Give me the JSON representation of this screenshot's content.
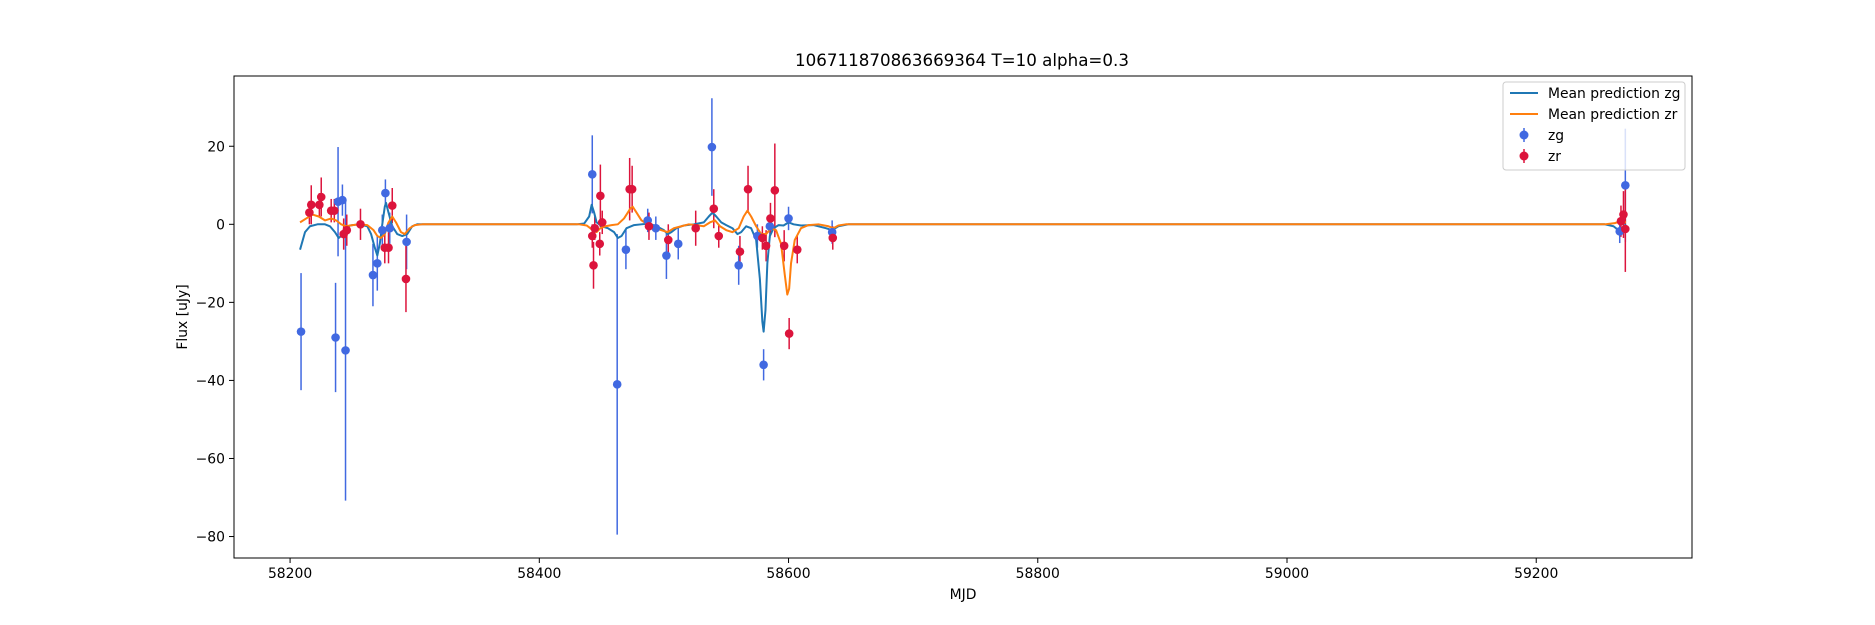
{
  "chart_data": {
    "type": "scatter",
    "title": "106711870863669364 T=10 alpha=0.3",
    "xlabel": "MJD",
    "ylabel": "Flux [uJy]",
    "xlim": [
      58155,
      59325
    ],
    "ylim": [
      -85.5,
      38
    ],
    "xticks": [
      58200,
      58400,
      58600,
      58800,
      59000,
      59200
    ],
    "yticks": [
      -80,
      -60,
      -40,
      -20,
      0,
      20
    ],
    "grid": false,
    "legend_position": "top-right",
    "legend": [
      {
        "label": "Mean prediction zg",
        "kind": "line",
        "color": "#1f77b4"
      },
      {
        "label": "Mean prediction zr",
        "kind": "line",
        "color": "#ff7f0e"
      },
      {
        "label": "zg",
        "kind": "errorbar",
        "color": "#4169e1"
      },
      {
        "label": "zr",
        "kind": "errorbar",
        "color": "#dc143c"
      }
    ],
    "series": [
      {
        "name": "zg",
        "kind": "errorbar",
        "color": "#4169e1",
        "points": [
          {
            "x": 58208.8,
            "y": -27.5,
            "err": 15.0
          },
          {
            "x": 58236.5,
            "y": -29.0,
            "err": 14.0
          },
          {
            "x": 58238.5,
            "y": 5.8,
            "err": 14.0
          },
          {
            "x": 58242.0,
            "y": 6.2,
            "err": 4.0
          },
          {
            "x": 58244.5,
            "y": -32.3,
            "err": 38.5
          },
          {
            "x": 58266.5,
            "y": -13.0,
            "err": 8.0
          },
          {
            "x": 58270.0,
            "y": -10.0,
            "err": 7.0
          },
          {
            "x": 58274.0,
            "y": -1.5,
            "err": 4.0
          },
          {
            "x": 58276.5,
            "y": 8.0,
            "err": 3.5
          },
          {
            "x": 58280.0,
            "y": -1.0,
            "err": 4.0
          },
          {
            "x": 58293.5,
            "y": -4.5,
            "err": 7.0
          },
          {
            "x": 58442.5,
            "y": 12.8,
            "err": 10.0
          },
          {
            "x": 58462.5,
            "y": -41.0,
            "err": 38.5
          },
          {
            "x": 58469.5,
            "y": -6.5,
            "err": 5.0
          },
          {
            "x": 58487.0,
            "y": 1.0,
            "err": 3.0
          },
          {
            "x": 58493.5,
            "y": -1.0,
            "err": 3.0
          },
          {
            "x": 58502.0,
            "y": -8.0,
            "err": 6.0
          },
          {
            "x": 58511.5,
            "y": -5.0,
            "err": 4.0
          },
          {
            "x": 58538.5,
            "y": 19.8,
            "err": 12.5
          },
          {
            "x": 58560.0,
            "y": -10.5,
            "err": 5.0
          },
          {
            "x": 58575.0,
            "y": -3.0,
            "err": 3.0
          },
          {
            "x": 58580.0,
            "y": -36.0,
            "err": 4.0
          },
          {
            "x": 58585.0,
            "y": -0.5,
            "err": 3.0
          },
          {
            "x": 58600.0,
            "y": 1.5,
            "err": 3.0
          },
          {
            "x": 58635.0,
            "y": -2.0,
            "err": 3.0
          },
          {
            "x": 59267.0,
            "y": -1.8,
            "err": 3.0
          },
          {
            "x": 59271.5,
            "y": 10.0,
            "err": 14.5
          }
        ]
      },
      {
        "name": "zr",
        "kind": "errorbar",
        "color": "#dc143c",
        "points": [
          {
            "x": 58215.5,
            "y": 3.0,
            "err": 3.0
          },
          {
            "x": 58217.0,
            "y": 5.0,
            "err": 5.0
          },
          {
            "x": 58223.5,
            "y": 5.0,
            "err": 3.0
          },
          {
            "x": 58225.0,
            "y": 7.0,
            "err": 5.0
          },
          {
            "x": 58233.0,
            "y": 3.5,
            "err": 3.0
          },
          {
            "x": 58235.5,
            "y": 3.5,
            "err": 3.0
          },
          {
            "x": 58243.0,
            "y": -2.5,
            "err": 4.0
          },
          {
            "x": 58245.5,
            "y": -1.5,
            "err": 4.0
          },
          {
            "x": 58256.5,
            "y": 0.0,
            "err": 4.0
          },
          {
            "x": 58276.0,
            "y": -6.0,
            "err": 4.0
          },
          {
            "x": 58279.0,
            "y": -6.0,
            "err": 4.0
          },
          {
            "x": 58282.0,
            "y": 4.8,
            "err": 4.5
          },
          {
            "x": 58293.0,
            "y": -14.0,
            "err": 8.5
          },
          {
            "x": 58442.5,
            "y": -3.0,
            "err": 3.0
          },
          {
            "x": 58443.5,
            "y": -10.5,
            "err": 6.0
          },
          {
            "x": 58444.5,
            "y": -1.0,
            "err": 3.0
          },
          {
            "x": 58448.5,
            "y": -5.0,
            "err": 3.0
          },
          {
            "x": 58449.0,
            "y": 7.3,
            "err": 8.0
          },
          {
            "x": 58450.5,
            "y": 0.5,
            "err": 3.0
          },
          {
            "x": 58472.5,
            "y": 9.0,
            "err": 8.0
          },
          {
            "x": 58474.5,
            "y": 9.0,
            "err": 6.0
          },
          {
            "x": 58488.0,
            "y": -0.5,
            "err": 3.5
          },
          {
            "x": 58503.5,
            "y": -4.0,
            "err": 4.0
          },
          {
            "x": 58525.5,
            "y": -1.0,
            "err": 4.5
          },
          {
            "x": 58540.0,
            "y": 4.0,
            "err": 5.0
          },
          {
            "x": 58544.0,
            "y": -3.0,
            "err": 3.0
          },
          {
            "x": 58561.0,
            "y": -7.0,
            "err": 4.0
          },
          {
            "x": 58567.5,
            "y": 9.0,
            "err": 6.0
          },
          {
            "x": 58579.0,
            "y": -3.5,
            "err": 3.0
          },
          {
            "x": 58582.0,
            "y": -5.5,
            "err": 4.0
          },
          {
            "x": 58585.5,
            "y": 1.5,
            "err": 4.0
          },
          {
            "x": 58589.0,
            "y": 8.7,
            "err": 12.0
          },
          {
            "x": 58596.5,
            "y": -5.5,
            "err": 4.0
          },
          {
            "x": 58600.5,
            "y": -28.0,
            "err": 4.0
          },
          {
            "x": 58607.0,
            "y": -6.5,
            "err": 3.5
          },
          {
            "x": 58635.5,
            "y": -3.5,
            "err": 3.0
          },
          {
            "x": 59268.0,
            "y": 0.8,
            "err": 4.0
          },
          {
            "x": 59270.0,
            "y": 2.5,
            "err": 6.0
          },
          {
            "x": 59271.5,
            "y": -1.2,
            "err": 11.0
          }
        ]
      },
      {
        "name": "Mean prediction zg",
        "kind": "line",
        "color": "#1f77b4",
        "points": [
          [
            58208,
            -6.5
          ],
          [
            58212,
            -2.0
          ],
          [
            58216,
            -0.5
          ],
          [
            58222,
            0.0
          ],
          [
            58228,
            0.0
          ],
          [
            58232,
            -0.5
          ],
          [
            58236,
            -2.0
          ],
          [
            58239,
            -3.5
          ],
          [
            58241,
            -3.0
          ],
          [
            58244,
            -1.5
          ],
          [
            58248,
            -0.3
          ],
          [
            58255,
            0.0
          ],
          [
            58262,
            -0.5
          ],
          [
            58265,
            -2.5
          ],
          [
            58268,
            -6.0
          ],
          [
            58270,
            -8.0
          ],
          [
            58272,
            -5.0
          ],
          [
            58274,
            0.0
          ],
          [
            58276,
            4.5
          ],
          [
            58277,
            5.5
          ],
          [
            58279,
            3.0
          ],
          [
            58282,
            -0.5
          ],
          [
            58286,
            -2.5
          ],
          [
            58290,
            -3.0
          ],
          [
            58294,
            -2.5
          ],
          [
            58298,
            -0.5
          ],
          [
            58302,
            0.0
          ],
          [
            58340,
            0.0
          ],
          [
            58400,
            0.0
          ],
          [
            58430,
            0.0
          ],
          [
            58436,
            0.2
          ],
          [
            58440,
            2.0
          ],
          [
            58442,
            5.0
          ],
          [
            58444,
            3.0
          ],
          [
            58446,
            0.5
          ],
          [
            58450,
            -0.5
          ],
          [
            58455,
            -1.0
          ],
          [
            58460,
            -2.0
          ],
          [
            58463,
            -3.5
          ],
          [
            58466,
            -3.0
          ],
          [
            58470,
            -1.0
          ],
          [
            58476,
            -0.2
          ],
          [
            58482,
            0.0
          ],
          [
            58488,
            0.2
          ],
          [
            58494,
            -0.5
          ],
          [
            58500,
            -1.5
          ],
          [
            58503,
            -2.5
          ],
          [
            58506,
            -2.0
          ],
          [
            58510,
            -1.0
          ],
          [
            58516,
            -0.3
          ],
          [
            58524,
            0.0
          ],
          [
            58532,
            0.5
          ],
          [
            58536,
            2.0
          ],
          [
            58539,
            3.0
          ],
          [
            58542,
            2.0
          ],
          [
            58546,
            0.5
          ],
          [
            58550,
            -0.2
          ],
          [
            58555,
            -1.0
          ],
          [
            58559,
            -2.5
          ],
          [
            58562,
            -2.0
          ],
          [
            58566,
            -0.5
          ],
          [
            58570,
            -1.0
          ],
          [
            58574,
            -4.0
          ],
          [
            58577,
            -14.0
          ],
          [
            58579,
            -25.0
          ],
          [
            58580,
            -27.5
          ],
          [
            58581.5,
            -22.0
          ],
          [
            58583,
            -10.0
          ],
          [
            58585,
            -3.0
          ],
          [
            58588,
            -1.0
          ],
          [
            58592,
            -0.2
          ],
          [
            58596,
            -0.3
          ],
          [
            58600,
            0.5
          ],
          [
            58604,
            0.0
          ],
          [
            58610,
            -0.3
          ],
          [
            58620,
            -0.2
          ],
          [
            58630,
            -1.0
          ],
          [
            58635,
            -1.5
          ],
          [
            58640,
            -0.5
          ],
          [
            58648,
            0.0
          ],
          [
            58700,
            0.0
          ],
          [
            58900,
            0.0
          ],
          [
            59100,
            0.0
          ],
          [
            59255,
            0.0
          ],
          [
            59262,
            -0.5
          ],
          [
            59266,
            -1.5
          ],
          [
            59269,
            -1.0
          ],
          [
            59272,
            0.0
          ]
        ]
      },
      {
        "name": "Mean prediction zr",
        "kind": "line",
        "color": "#ff7f0e",
        "points": [
          [
            58208,
            0.5
          ],
          [
            58213,
            1.5
          ],
          [
            58218,
            2.5
          ],
          [
            58223,
            2.0
          ],
          [
            58228,
            1.0
          ],
          [
            58233,
            1.5
          ],
          [
            58237,
            1.0
          ],
          [
            58241,
            0.0
          ],
          [
            58245,
            -0.5
          ],
          [
            58250,
            -0.2
          ],
          [
            58256,
            0.0
          ],
          [
            58262,
            -0.2
          ],
          [
            58267,
            -1.5
          ],
          [
            58270,
            -3.0
          ],
          [
            58273,
            -3.5
          ],
          [
            58276,
            -2.5
          ],
          [
            58279,
            0.5
          ],
          [
            58282,
            2.0
          ],
          [
            58285,
            0.5
          ],
          [
            58289,
            -2.0
          ],
          [
            58292,
            -2.5
          ],
          [
            58296,
            -1.0
          ],
          [
            58300,
            -0.2
          ],
          [
            58306,
            0.0
          ],
          [
            58400,
            0.0
          ],
          [
            58432,
            0.0
          ],
          [
            58438,
            -0.3
          ],
          [
            58443,
            -1.5
          ],
          [
            58446,
            -2.0
          ],
          [
            58449,
            -1.0
          ],
          [
            58453,
            -0.5
          ],
          [
            58458,
            -0.2
          ],
          [
            58463,
            0.0
          ],
          [
            58468,
            1.5
          ],
          [
            58473,
            4.0
          ],
          [
            58475,
            4.5
          ],
          [
            58478,
            3.0
          ],
          [
            58482,
            1.0
          ],
          [
            58487,
            0.0
          ],
          [
            58493,
            -1.0
          ],
          [
            58498,
            -1.5
          ],
          [
            58503,
            -2.0
          ],
          [
            58508,
            -1.0
          ],
          [
            58514,
            -0.5
          ],
          [
            58520,
            0.0
          ],
          [
            58526,
            -0.2
          ],
          [
            58532,
            -0.5
          ],
          [
            58537,
            0.5
          ],
          [
            58541,
            1.0
          ],
          [
            58545,
            -0.5
          ],
          [
            58550,
            -1.5
          ],
          [
            58555,
            -2.0
          ],
          [
            58560,
            -1.0
          ],
          [
            58564,
            2.0
          ],
          [
            58567,
            3.5
          ],
          [
            58570,
            2.0
          ],
          [
            58574,
            -0.5
          ],
          [
            58578,
            -2.5
          ],
          [
            58582,
            -2.5
          ],
          [
            58586,
            -1.0
          ],
          [
            58590,
            -1.5
          ],
          [
            58594,
            -5.0
          ],
          [
            58597,
            -13.0
          ],
          [
            58599,
            -18.0
          ],
          [
            58600.5,
            -16.5
          ],
          [
            58602,
            -10.0
          ],
          [
            58605,
            -4.0
          ],
          [
            58610,
            -1.0
          ],
          [
            58616,
            -0.2
          ],
          [
            58624,
            0.0
          ],
          [
            58632,
            -0.5
          ],
          [
            58636,
            -1.0
          ],
          [
            58640,
            -0.3
          ],
          [
            58646,
            0.0
          ],
          [
            58700,
            0.0
          ],
          [
            58900,
            0.0
          ],
          [
            59100,
            0.0
          ],
          [
            59255,
            0.0
          ],
          [
            59263,
            0.3
          ],
          [
            59268,
            0.8
          ],
          [
            59272,
            0.5
          ]
        ]
      }
    ]
  }
}
